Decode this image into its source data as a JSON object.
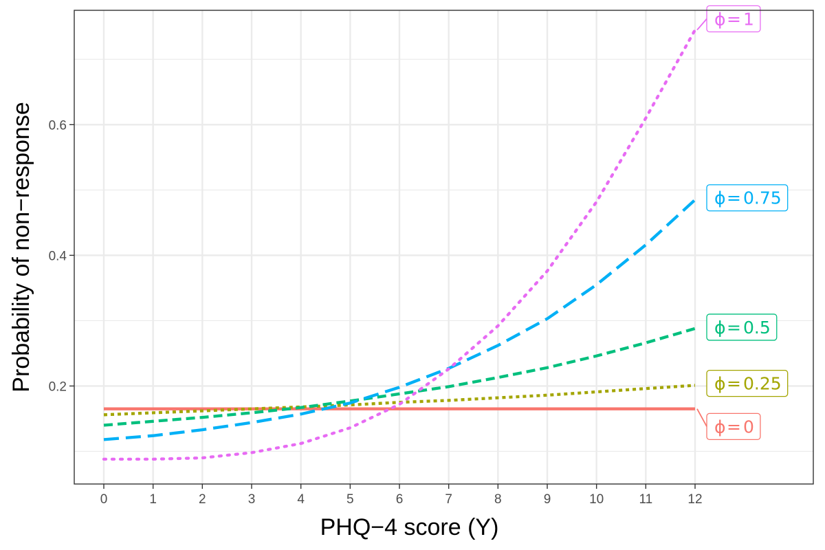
{
  "chart_data": {
    "type": "line",
    "title": "",
    "xlabel": "PHQ−4 score (Y)",
    "ylabel": "Probability of non−response",
    "xlim": [
      -0.6,
      14.4
    ],
    "ylim": [
      0.05,
      0.775
    ],
    "x_ticks": [
      0,
      1,
      2,
      3,
      4,
      5,
      6,
      7,
      8,
      9,
      10,
      11,
      12
    ],
    "y_ticks": [
      0.2,
      0.4,
      0.6
    ],
    "y_tick_labels": [
      "0.2",
      "0.4",
      "0.6"
    ],
    "grid": true,
    "legend": "direct labels at right end of lines",
    "x": [
      0,
      1,
      2,
      3,
      4,
      5,
      6,
      7,
      8,
      9,
      10,
      11,
      12
    ],
    "series": [
      {
        "name": "ϕ = 0",
        "label_phi": "ϕ",
        "label_value": "0",
        "color": "#F8766D",
        "dash": "solid",
        "values": [
          0.165,
          0.165,
          0.165,
          0.165,
          0.165,
          0.165,
          0.165,
          0.165,
          0.165,
          0.165,
          0.165,
          0.165,
          0.165
        ]
      },
      {
        "name": "ϕ = 0.25",
        "label_phi": "ϕ",
        "label_value": "0.25",
        "color": "#A3A500",
        "dash": "short-dash",
        "values": [
          0.156,
          0.159,
          0.162,
          0.165,
          0.168,
          0.171,
          0.175,
          0.178,
          0.182,
          0.186,
          0.191,
          0.196,
          0.201
        ]
      },
      {
        "name": "ϕ = 0.5",
        "label_phi": "ϕ",
        "label_value": "0.5",
        "color": "#00BF7D",
        "dash": "dash",
        "values": [
          0.14,
          0.146,
          0.152,
          0.159,
          0.167,
          0.177,
          0.188,
          0.199,
          0.213,
          0.228,
          0.246,
          0.266,
          0.288
        ]
      },
      {
        "name": "ϕ = 0.75",
        "label_phi": "ϕ",
        "label_value": "0.75",
        "color": "#00B0F6",
        "dash": "long-dash",
        "values": [
          0.118,
          0.124,
          0.133,
          0.144,
          0.157,
          0.174,
          0.198,
          0.227,
          0.262,
          0.303,
          0.355,
          0.416,
          0.485
        ]
      },
      {
        "name": "ϕ = 1",
        "label_phi": "ϕ",
        "label_value": "1",
        "color": "#E76BF3",
        "dash": "dotted",
        "values": [
          0.088,
          0.088,
          0.09,
          0.098,
          0.112,
          0.136,
          0.172,
          0.226,
          0.292,
          0.376,
          0.482,
          0.61,
          0.745
        ]
      }
    ],
    "label_positions_y": [
      0.138,
      0.204,
      0.29,
      0.488,
      0.762
    ],
    "label_equals": "="
  }
}
